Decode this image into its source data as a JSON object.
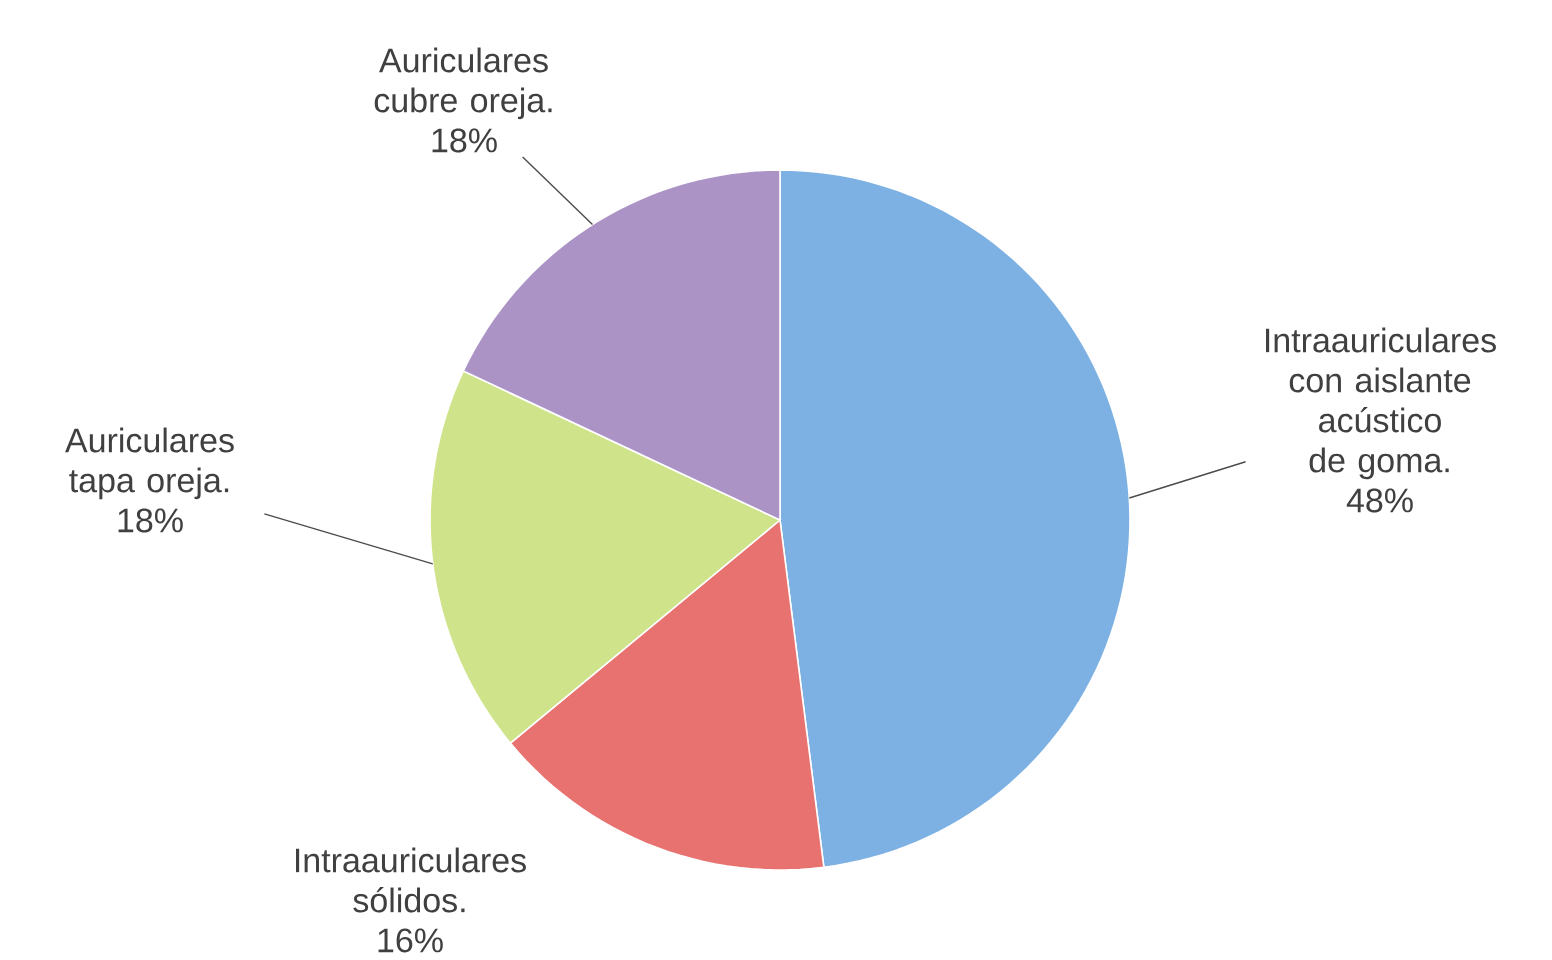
{
  "chart_data": {
    "type": "pie",
    "categories": [
      "Intraauriculares con aislante acústico de goma.",
      "Intraauriculares sólidos.",
      "Auriculares tapa oreja.",
      "Auriculares cubre oreja."
    ],
    "values": [
      48,
      16,
      18,
      18
    ],
    "value_labels": [
      "48%",
      "16%",
      "18%",
      "18%"
    ],
    "colors": [
      "#7eb1e3",
      "#e8726f",
      "#cfe38a",
      "#ab93c6"
    ]
  }
}
